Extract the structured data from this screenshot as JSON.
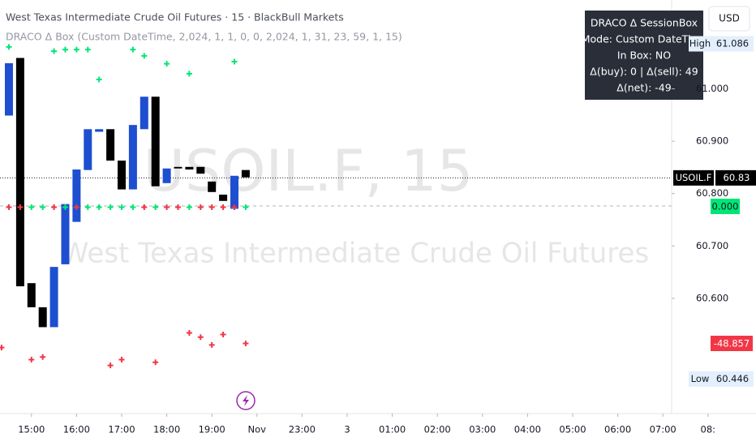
{
  "header": {
    "title": "West Texas Intermediate Crude Oil Futures · 15 · BlackBull Markets",
    "indicator": "DRACO Δ Box (Custom DateTime, 2,024, 1, 1, 0, 0, 2,024, 1, 31, 23, 59, 1, 15)"
  },
  "currency": "USD",
  "watermark": {
    "symbol": "USOIL.F, 15",
    "name": "West Texas Intermediate Crude Oil Futures"
  },
  "info_box": {
    "lines": [
      "DRACO Δ SessionBox",
      "Mode: Custom DateTime",
      "In Box: NO",
      "Δ(buy): 0 | Δ(sell): 49",
      "Δ(net): -49"
    ]
  },
  "indicator_badges": [
    {
      "value": 0,
      "label": "0.000",
      "color": "#00e676"
    },
    {
      "value": -48.857,
      "label": "-48.857",
      "color": "#f23645"
    }
  ],
  "chart_data": {
    "type": "candlestick",
    "x": [
      0,
      1,
      2,
      3,
      4,
      5,
      6,
      7,
      8,
      9,
      10,
      11,
      12,
      13,
      14,
      15,
      16,
      17,
      18,
      19,
      20,
      21
    ],
    "open": [
      60.949,
      61.059,
      60.629,
      60.583,
      60.545,
      60.665,
      60.746,
      60.845,
      60.918,
      60.923,
      60.863,
      60.808,
      60.923,
      60.985,
      60.82,
      60.851,
      60.851,
      60.851,
      60.823,
      60.798,
      60.771,
      60.845
    ],
    "high": {
      "label": "High",
      "value": 61.086
    },
    "low": {
      "label": "Low",
      "value": 60.446
    },
    "close": [
      61.049,
      60.623,
      60.583,
      60.545,
      60.66,
      60.78,
      60.846,
      60.923,
      60.923,
      60.863,
      60.808,
      60.931,
      60.985,
      60.814,
      60.848,
      60.848,
      60.846,
      60.838,
      60.803,
      60.786,
      60.834,
      60.831
    ],
    "up_color": "#1e4fd0",
    "down_color": "#000000",
    "xlim": [
      -0.79,
      66.26
    ],
    "ylim": [
      60.38,
      61.165
    ],
    "xticks": [
      {
        "value": 2,
        "label": "15:00"
      },
      {
        "value": 6,
        "label": "16:00"
      },
      {
        "value": 10,
        "label": "17:00"
      },
      {
        "value": 14,
        "label": "18:00"
      },
      {
        "value": 18,
        "label": "19:00"
      },
      {
        "value": 22,
        "label": "Nov"
      },
      {
        "value": 26,
        "label": "23:00"
      },
      {
        "value": 30,
        "label": "3"
      },
      {
        "value": 34,
        "label": "01:00"
      },
      {
        "value": 38,
        "label": "02:00"
      },
      {
        "value": 42,
        "label": "03:00"
      },
      {
        "value": 46,
        "label": "04:00"
      },
      {
        "value": 50,
        "label": "05:00"
      },
      {
        "value": 54,
        "label": "06:00"
      },
      {
        "value": 58,
        "label": "07:00"
      },
      {
        "value": 62,
        "label": "08:"
      }
    ],
    "yticks": [
      {
        "value": 60.6,
        "label": "60.600"
      },
      {
        "value": 60.7,
        "label": "60.700"
      },
      {
        "value": 60.8,
        "label": "60.800"
      },
      {
        "value": 60.9,
        "label": "60.900"
      },
      {
        "value": 61,
        "label": "61.000"
      }
    ],
    "markers": [
      {
        "color": "#00e676",
        "x": [
          0,
          4,
          5,
          6,
          7,
          8,
          11,
          12,
          14,
          16,
          20
        ],
        "y": [
          61.08,
          61.072,
          61.075,
          61.075,
          61.075,
          61.018,
          61.075,
          61.063,
          61.048,
          61.029,
          61.052
        ]
      },
      {
        "color": "#00e676",
        "x": [
          2,
          3,
          5,
          7,
          8,
          9,
          10,
          11,
          13,
          16,
          21
        ],
        "y": [
          60.774,
          60.774,
          60.774,
          60.774,
          60.774,
          60.774,
          60.774,
          60.774,
          60.774,
          60.774,
          60.774
        ]
      },
      {
        "color": "#f23645",
        "x": [
          0,
          1,
          4,
          6,
          12,
          14,
          15,
          17,
          18,
          19,
          20
        ],
        "y": [
          60.774,
          60.774,
          60.774,
          60.774,
          60.774,
          60.774,
          60.774,
          60.774,
          60.774,
          60.774,
          60.774
        ]
      },
      {
        "color": "#f23645",
        "x": [
          -0.65,
          2,
          3,
          9,
          10,
          13,
          16,
          17,
          18,
          19,
          21
        ],
        "y": [
          60.506,
          60.483,
          60.488,
          60.472,
          60.483,
          60.478,
          60.534,
          60.526,
          60.511,
          60.531,
          60.514
        ]
      }
    ],
    "last_price": {
      "label": "USOIL.F",
      "value": 60.83
    }
  }
}
